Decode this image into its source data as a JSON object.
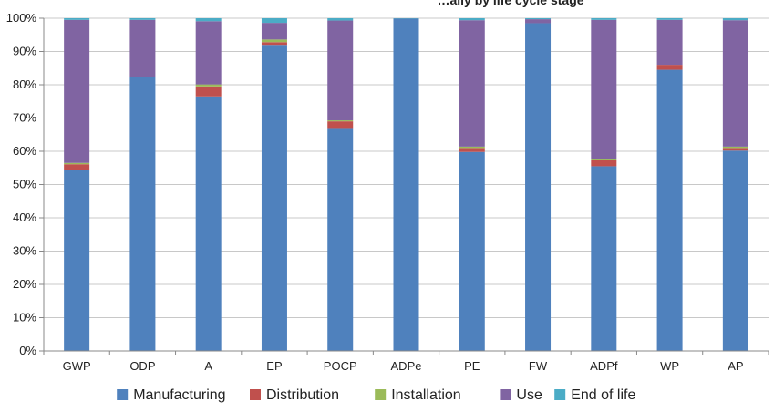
{
  "chart_data": {
    "type": "bar",
    "stacked": true,
    "title_partial": "…ally by life cycle stage",
    "categories": [
      "GWP",
      "ODP",
      "A",
      "EP",
      "POCP",
      "ADPe",
      "PE",
      "FW",
      "ADPf",
      "WP",
      "AP"
    ],
    "y_tick_labels": [
      "0%",
      "10%",
      "20%",
      "30%",
      "40%",
      "50%",
      "60%",
      "70%",
      "80%",
      "90%",
      "100%"
    ],
    "ylim": [
      0,
      100
    ],
    "y_unit": "%",
    "grid": "horizontal",
    "legend_position": "bottom",
    "series": [
      {
        "name": "Manufacturing",
        "color": "#4F81BD",
        "values": [
          54.5,
          82.2,
          76.5,
          92.0,
          67.0,
          99.9,
          59.8,
          98.5,
          55.5,
          84.5,
          60.2
        ]
      },
      {
        "name": "Distribution",
        "color": "#C0504D",
        "values": [
          1.6,
          0.1,
          3.0,
          0.8,
          2.0,
          0.0,
          1.2,
          0.0,
          1.9,
          1.5,
          0.8
        ]
      },
      {
        "name": "Installation",
        "color": "#9BBB59",
        "values": [
          0.4,
          0.0,
          0.6,
          0.8,
          0.3,
          0.0,
          0.4,
          0.0,
          0.4,
          0.0,
          0.4
        ]
      },
      {
        "name": "Use",
        "color": "#8064A2",
        "values": [
          43.0,
          17.2,
          19.0,
          5.0,
          30.0,
          0.0,
          38.0,
          1.2,
          41.7,
          13.5,
          38.0
        ]
      },
      {
        "name": "End of life",
        "color": "#4BACC6",
        "values": [
          0.5,
          0.5,
          0.9,
          1.4,
          0.7,
          0.1,
          0.6,
          0.3,
          0.5,
          0.5,
          0.6
        ]
      }
    ]
  }
}
